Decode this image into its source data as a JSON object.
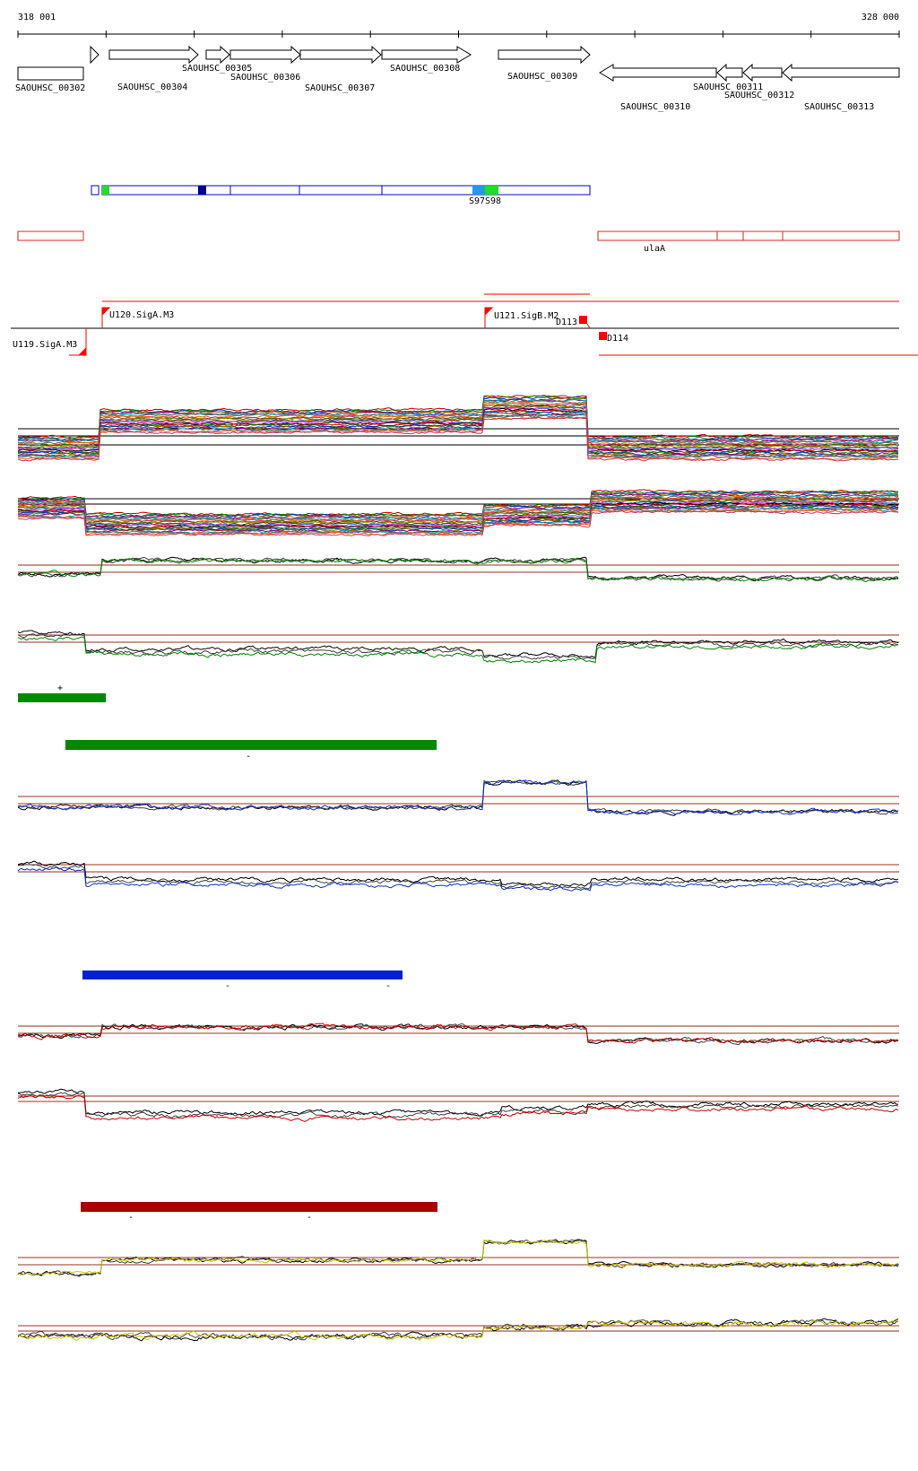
{
  "coords": {
    "start": "318 001",
    "end": "328 000"
  },
  "genes": {
    "forward": [
      "SAOUHSC_00304",
      "SAOUHSC_00305",
      "SAOUHSC_00306",
      "SAOUHSC_00307",
      "SAOUHSC_00308",
      "SAOUHSC_00309"
    ],
    "reverse": [
      "SAOUHSC_00302",
      "SAOUHSC_00310",
      "SAOUHSC_00311",
      "SAOUHSC_00312",
      "SAOUHSC_00313"
    ]
  },
  "segments": {
    "labels": [
      "S97",
      "S98"
    ],
    "colors": {
      "frame": "#0000cc",
      "dark": "#000099",
      "green": "#22dd22",
      "light": "#2299ee"
    }
  },
  "operon": {
    "label": "ulaA",
    "color": "#dd2222"
  },
  "features": {
    "promoters": [
      "U119.SigA.M3",
      "U120.SigA.M3",
      "U121.SigB.M2"
    ],
    "terminators": [
      "D113",
      "D114"
    ],
    "color": "#ff0000"
  },
  "bars": {
    "green": {
      "color": "#008800",
      "signs": [
        "+",
        "-"
      ]
    },
    "blue": {
      "color": "#0022cc",
      "signs": [
        "-",
        "-"
      ]
    },
    "red": {
      "color": "#aa0000",
      "signs": [
        "-",
        "-"
      ]
    }
  },
  "tracks": {
    "colors": {
      "green": "#008800",
      "blue": "#1133cc",
      "red": "#cc0000",
      "yellow": "#cccc00",
      "baseline": "#993322"
    }
  }
}
